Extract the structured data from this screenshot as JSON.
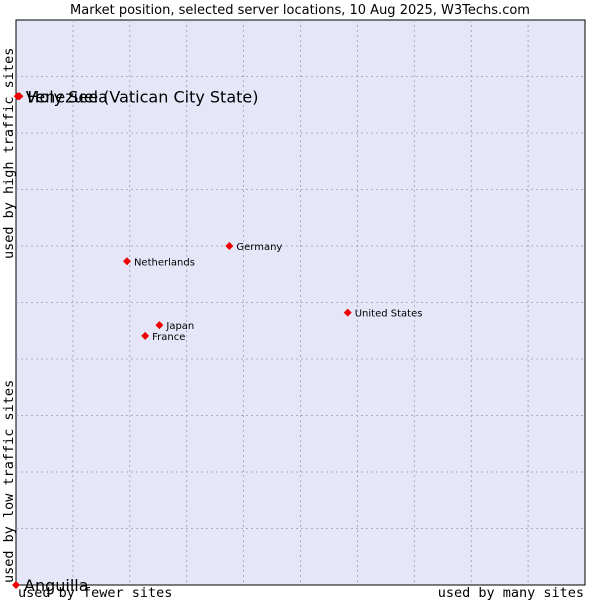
{
  "chart_data": {
    "type": "scatter",
    "title": "Market position, selected server locations, 10 Aug 2025, W3Techs.com",
    "x_axis": {
      "low_label": "used by fewer sites",
      "high_label": "used by many sites",
      "range": [
        0,
        100
      ]
    },
    "y_axis": {
      "low_label": "used by low traffic sites",
      "high_label": "used by high traffic sites",
      "range": [
        0,
        100
      ]
    },
    "grid": true,
    "points": [
      {
        "name": "Holy See (Vatican City State)",
        "x": 0.6,
        "y": 86.5,
        "label_size": "large"
      },
      {
        "name": "Venezuela",
        "x": 0.3,
        "y": 86.5,
        "label_size": "large"
      },
      {
        "name": "Anguilla",
        "x": 0.0,
        "y": 0.0,
        "label_size": "large"
      },
      {
        "name": "Germany",
        "x": 37.5,
        "y": 60.0,
        "label_size": "small"
      },
      {
        "name": "Netherlands",
        "x": 19.5,
        "y": 57.3,
        "label_size": "small"
      },
      {
        "name": "United States",
        "x": 58.3,
        "y": 48.2,
        "label_size": "small"
      },
      {
        "name": "Japan",
        "x": 25.2,
        "y": 46.0,
        "label_size": "small"
      },
      {
        "name": "France",
        "x": 22.7,
        "y": 44.1,
        "label_size": "small"
      }
    ],
    "colors": {
      "plot_background": "#e5e7f8",
      "grid": "#9a9cb0",
      "marker": "#ee0000"
    }
  }
}
